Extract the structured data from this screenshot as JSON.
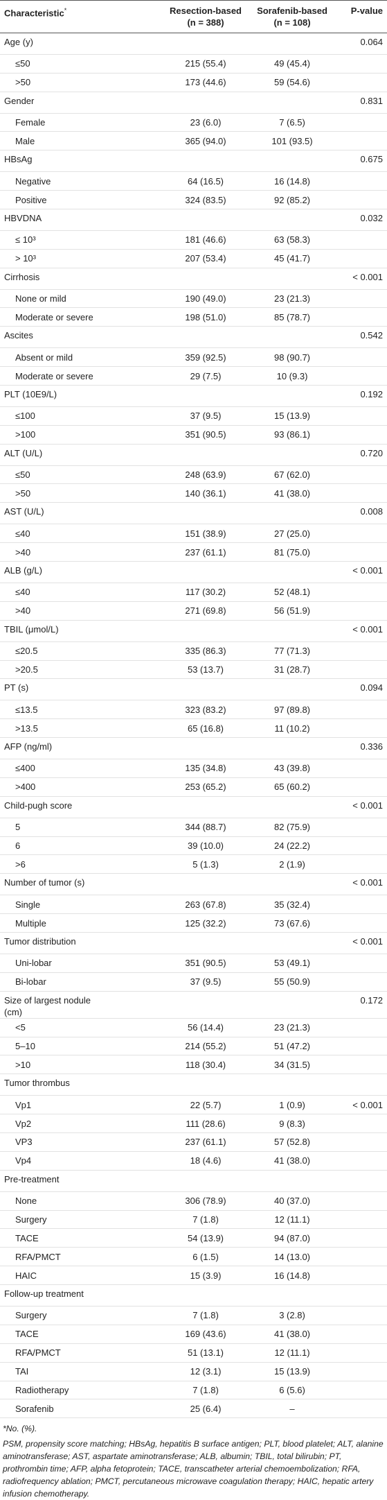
{
  "header": {
    "characteristic": "Characteristic",
    "note_mark": "*",
    "resection": "Resection-based",
    "resection_n": "(n = 388)",
    "sorafenib": "Sorafenib-based",
    "sorafenib_n": "(n = 108)",
    "p_value": "P-value"
  },
  "groups": [
    {
      "label": "Age (y)",
      "p_value": "0.064",
      "rows": [
        {
          "label": "≤50",
          "resection": "215 (55.4)",
          "sorafenib": "49 (45.4)"
        },
        {
          "label": ">50",
          "resection": "173 (44.6)",
          "sorafenib": "59 (54.6)"
        }
      ]
    },
    {
      "label": "Gender",
      "p_value": "0.831",
      "rows": [
        {
          "label": "Female",
          "resection": "23 (6.0)",
          "sorafenib": "7 (6.5)"
        },
        {
          "label": "Male",
          "resection": "365 (94.0)",
          "sorafenib": "101 (93.5)"
        }
      ]
    },
    {
      "label": "HBsAg",
      "p_value": "0.675",
      "rows": [
        {
          "label": "Negative",
          "resection": "64 (16.5)",
          "sorafenib": "16 (14.8)"
        },
        {
          "label": "Positive",
          "resection": "324 (83.5)",
          "sorafenib": "92 (85.2)"
        }
      ]
    },
    {
      "label": "HBVDNA",
      "p_value": "0.032",
      "rows": [
        {
          "label": "≤ 10³",
          "resection": "181 (46.6)",
          "sorafenib": "63 (58.3)"
        },
        {
          "label": "> 10³",
          "resection": "207 (53.4)",
          "sorafenib": "45 (41.7)"
        }
      ]
    },
    {
      "label": "Cirrhosis",
      "p_value": "< 0.001",
      "rows": [
        {
          "label": "None or mild",
          "resection": "190 (49.0)",
          "sorafenib": "23 (21.3)"
        },
        {
          "label": "Moderate or severe",
          "resection": "198 (51.0)",
          "sorafenib": "85 (78.7)"
        }
      ]
    },
    {
      "label": "Ascites",
      "p_value": "0.542",
      "rows": [
        {
          "label": "Absent or mild",
          "resection": "359 (92.5)",
          "sorafenib": "98 (90.7)"
        },
        {
          "label": "Moderate or severe",
          "resection": "29 (7.5)",
          "sorafenib": "10 (9.3)"
        }
      ]
    },
    {
      "label": "PLT (10E9/L)",
      "p_value": "0.192",
      "rows": [
        {
          "label": "≤100",
          "resection": "37 (9.5)",
          "sorafenib": "15 (13.9)"
        },
        {
          "label": ">100",
          "resection": "351 (90.5)",
          "sorafenib": "93 (86.1)"
        }
      ]
    },
    {
      "label": "ALT (U/L)",
      "p_value": "0.720",
      "rows": [
        {
          "label": "≤50",
          "resection": "248 (63.9)",
          "sorafenib": "67 (62.0)"
        },
        {
          "label": ">50",
          "resection": "140 (36.1)",
          "sorafenib": "41 (38.0)"
        }
      ]
    },
    {
      "label": "AST (U/L)",
      "p_value": "0.008",
      "rows": [
        {
          "label": "≤40",
          "resection": "151 (38.9)",
          "sorafenib": "27 (25.0)"
        },
        {
          "label": ">40",
          "resection": "237 (61.1)",
          "sorafenib": "81 (75.0)"
        }
      ]
    },
    {
      "label": "ALB (g/L)",
      "p_value": "< 0.001",
      "rows": [
        {
          "label": "≤40",
          "resection": "117 (30.2)",
          "sorafenib": "52 (48.1)"
        },
        {
          "label": ">40",
          "resection": "271 (69.8)",
          "sorafenib": "56 (51.9)"
        }
      ]
    },
    {
      "label": "TBIL (μmol/L)",
      "p_value": "< 0.001",
      "rows": [
        {
          "label": "≤20.5",
          "resection": "335 (86.3)",
          "sorafenib": "77 (71.3)"
        },
        {
          "label": ">20.5",
          "resection": "53 (13.7)",
          "sorafenib": "31 (28.7)"
        }
      ]
    },
    {
      "label": "PT (s)",
      "p_value": "0.094",
      "rows": [
        {
          "label": "≤13.5",
          "resection": "323 (83.2)",
          "sorafenib": "97 (89.8)"
        },
        {
          "label": ">13.5",
          "resection": "65 (16.8)",
          "sorafenib": "11 (10.2)"
        }
      ]
    },
    {
      "label": "AFP (ng/ml)",
      "p_value": "0.336",
      "rows": [
        {
          "label": "≤400",
          "resection": "135 (34.8)",
          "sorafenib": "43 (39.8)"
        },
        {
          "label": ">400",
          "resection": "253 (65.2)",
          "sorafenib": "65 (60.2)"
        }
      ]
    },
    {
      "label": "Child-pugh score",
      "p_value": "< 0.001",
      "rows": [
        {
          "label": "5",
          "resection": "344 (88.7)",
          "sorafenib": "82 (75.9)"
        },
        {
          "label": "6",
          "resection": "39 (10.0)",
          "sorafenib": "24 (22.2)"
        },
        {
          "label": ">6",
          "resection": "5 (1.3)",
          "sorafenib": "2 (1.9)"
        }
      ]
    },
    {
      "label": "Number of tumor (s)",
      "p_value": "< 0.001",
      "rows": [
        {
          "label": "Single",
          "resection": "263 (67.8)",
          "sorafenib": "35 (32.4)"
        },
        {
          "label": "Multiple",
          "resection": "125 (32.2)",
          "sorafenib": "73 (67.6)"
        }
      ]
    },
    {
      "label": "Tumor distribution",
      "p_value": "< 0.001",
      "rows": [
        {
          "label": "Uni-lobar",
          "resection": "351 (90.5)",
          "sorafenib": "53 (49.1)"
        },
        {
          "label": "Bi-lobar",
          "resection": "37 (9.5)",
          "sorafenib": "55 (50.9)"
        }
      ]
    },
    {
      "label": "Size of largest nodule (cm)",
      "p_value": "0.172",
      "rows": [
        {
          "label": "<5",
          "resection": "56 (14.4)",
          "sorafenib": "23 (21.3)"
        },
        {
          "label": "5–10",
          "resection": "214 (55.2)",
          "sorafenib": "51 (47.2)"
        },
        {
          "label": ">10",
          "resection": "118 (30.4)",
          "sorafenib": "34 (31.5)"
        }
      ]
    },
    {
      "label": "Tumor thrombus",
      "rows": [
        {
          "label": "Vp1",
          "resection": "22 (5.7)",
          "sorafenib": "1 (0.9)",
          "p_value": "< 0.001"
        },
        {
          "label": "Vp2",
          "resection": "111 (28.6)",
          "sorafenib": "9 (8.3)"
        },
        {
          "label": "VP3",
          "resection": "237 (61.1)",
          "sorafenib": "57 (52.8)"
        },
        {
          "label": "Vp4",
          "resection": "18 (4.6)",
          "sorafenib": "41 (38.0)"
        }
      ]
    },
    {
      "label": "Pre-treatment",
      "rows": [
        {
          "label": "None",
          "resection": "306 (78.9)",
          "sorafenib": "40 (37.0)"
        },
        {
          "label": "Surgery",
          "resection": "7 (1.8)",
          "sorafenib": "12 (11.1)"
        },
        {
          "label": "TACE",
          "resection": "54 (13.9)",
          "sorafenib": "94 (87.0)"
        },
        {
          "label": "RFA/PMCT",
          "resection": "6 (1.5)",
          "sorafenib": "14 (13.0)"
        },
        {
          "label": "HAIC",
          "resection": "15 (3.9)",
          "sorafenib": "16 (14.8)"
        }
      ]
    },
    {
      "label": "Follow-up treatment",
      "rows": [
        {
          "label": "Surgery",
          "resection": "7 (1.8)",
          "sorafenib": "3 (2.8)"
        },
        {
          "label": "TACE",
          "resection": "169 (43.6)",
          "sorafenib": "41 (38.0)"
        },
        {
          "label": "RFA/PMCT",
          "resection": "51 (13.1)",
          "sorafenib": "12 (11.1)"
        },
        {
          "label": "TAI",
          "resection": "12 (3.1)",
          "sorafenib": "15 (13.9)"
        },
        {
          "label": "Radiotherapy",
          "resection": "7 (1.8)",
          "sorafenib": "6 (5.6)"
        },
        {
          "label": "Sorafenib",
          "resection": "25 (6.4)",
          "sorafenib": "–"
        }
      ]
    }
  ],
  "footnotes": {
    "note": "*No. (%).",
    "abbreviations": "PSM, propensity score matching; HBsAg, hepatitis B surface antigen; PLT, blood platelet; ALT, alanine aminotransferase; AST, aspartate aminotransferase; ALB, albumin; TBIL, total bilirubin; PT, prothrombin time; AFP, alpha fetoprotein; TACE, transcatheter arterial chemoembolization; RFA, radiofrequency ablation; PMCT, percutaneous microwave coagulation therapy; HAIC, hepatic artery infusion chemotherapy."
  }
}
